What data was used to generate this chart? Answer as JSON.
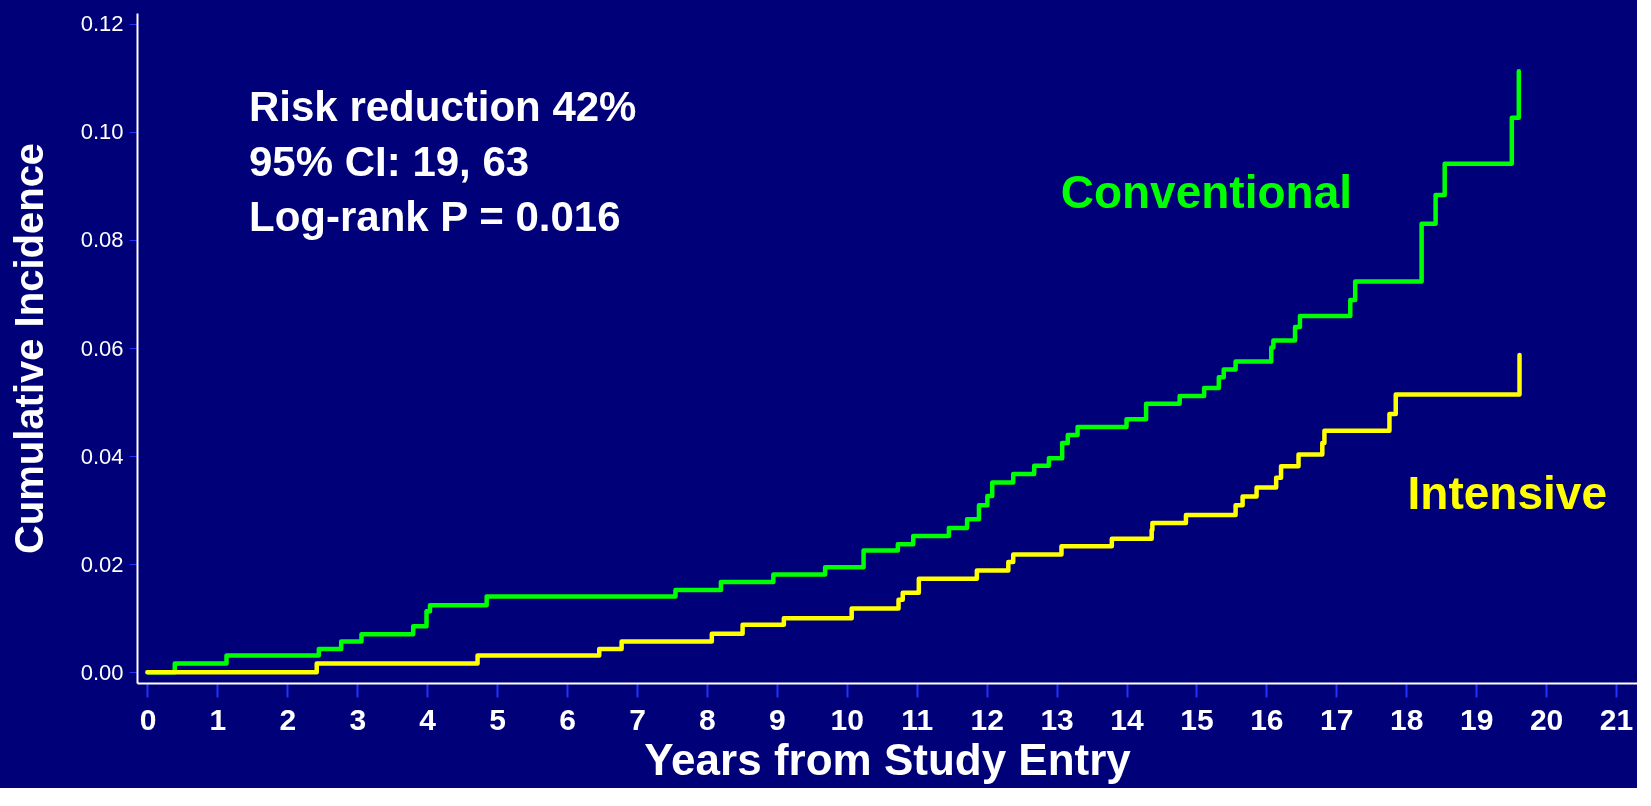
{
  "chart_data": {
    "type": "step",
    "xlabel": "Years from Study Entry",
    "ylabel": "Cumulative Incidence",
    "xlim": [
      -0.15,
      21.3
    ],
    "ylim": [
      -0.002,
      0.122
    ],
    "xticks": [
      0,
      1,
      2,
      3,
      4,
      5,
      6,
      7,
      8,
      9,
      10,
      11,
      12,
      13,
      14,
      15,
      16,
      17,
      18,
      19,
      20,
      21
    ],
    "yticks": [
      {
        "value": 0,
        "label": "0.00"
      },
      {
        "value": 0.02,
        "label": "0.02"
      },
      {
        "value": 0.04,
        "label": "0.04"
      },
      {
        "value": 0.06,
        "label": "0.06"
      },
      {
        "value": 0.08,
        "label": "0.08"
      },
      {
        "value": 0.1,
        "label": "0.10"
      },
      {
        "value": 0.12,
        "label": "0.12"
      }
    ],
    "grid": false,
    "legend": false,
    "line_style": "solid",
    "annotations": [
      "Risk reduction 42%",
      "95% CI: 19, 63",
      "Log-rank P = 0.016"
    ],
    "series": [
      {
        "name": "Conventional",
        "color": "#00ff00",
        "x": [
          0,
          0.39,
          1.13,
          2.45,
          2.77,
          3.06,
          3.8,
          3.99,
          4.04,
          4.85,
          7.55,
          8.2,
          8.95,
          9.69,
          10.24,
          10.73,
          10.95,
          11.46,
          11.72,
          11.89,
          12.01,
          12.08,
          12.38,
          12.68,
          12.89,
          13.08,
          13.16,
          13.3,
          14.0,
          14.28,
          14.76,
          15.11,
          15.32,
          15.39,
          15.56,
          16.07,
          16.1,
          16.41,
          16.48,
          17.2,
          17.27,
          18.22,
          18.42,
          18.55,
          19.51,
          19.61,
          19.61
        ],
        "values": [
          0,
          0.0016,
          0.0031,
          0.0043,
          0.0057,
          0.007,
          0.0085,
          0.0113,
          0.0124,
          0.014,
          0.0152,
          0.0167,
          0.0181,
          0.0194,
          0.0225,
          0.0237,
          0.0252,
          0.0267,
          0.0283,
          0.0309,
          0.0326,
          0.0351,
          0.0367,
          0.0382,
          0.0396,
          0.0424,
          0.0439,
          0.0454,
          0.0468,
          0.0497,
          0.0511,
          0.0526,
          0.0546,
          0.056,
          0.0575,
          0.0601,
          0.0614,
          0.0639,
          0.0659,
          0.0689,
          0.0723,
          0.083,
          0.0883,
          0.0941,
          0.1026,
          0.1112,
          0.1112
        ]
      },
      {
        "name": "Intensive",
        "color": "#ffff00",
        "x": [
          0,
          2.42,
          4.72,
          6.46,
          6.78,
          8.07,
          8.51,
          9.1,
          10.07,
          10.74,
          10.8,
          11.03,
          11.86,
          12.31,
          12.38,
          13.07,
          13.79,
          14.36,
          14.37,
          14.85,
          15.56,
          15.66,
          15.86,
          16.14,
          16.21,
          16.46,
          16.8,
          16.83,
          17.76,
          17.85,
          19.62,
          19.62
        ],
        "values": [
          0,
          0.0016,
          0.0031,
          0.0043,
          0.0057,
          0.0071,
          0.0088,
          0.01,
          0.0118,
          0.0134,
          0.0147,
          0.0173,
          0.0188,
          0.0204,
          0.0218,
          0.0233,
          0.0247,
          0.0263,
          0.0276,
          0.0291,
          0.0309,
          0.0325,
          0.0342,
          0.036,
          0.0381,
          0.0403,
          0.0424,
          0.0447,
          0.0478,
          0.0514,
          0.0514,
          0.0587
        ]
      }
    ]
  }
}
